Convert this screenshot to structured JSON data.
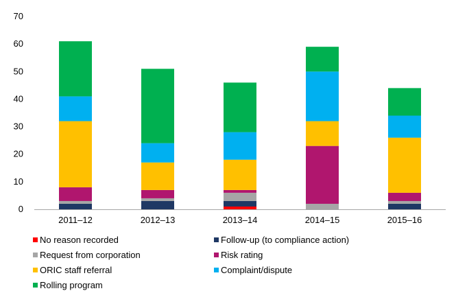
{
  "chart_data": {
    "type": "bar",
    "stacked": true,
    "categories": [
      "2011–12",
      "2012–13",
      "2013–14",
      "2014–15",
      "2015–16"
    ],
    "ylim": [
      0,
      70
    ],
    "yticks": [
      0,
      10,
      20,
      30,
      40,
      50,
      60,
      70
    ],
    "grid": false,
    "legend_position": "bottom",
    "series": [
      {
        "name": "No reason recorded",
        "color": "#ff0000",
        "values": [
          0,
          0,
          1,
          0,
          0
        ]
      },
      {
        "name": "Follow-up (to compliance action)",
        "color": "#1f3864",
        "values": [
          2,
          3,
          2,
          0,
          2
        ]
      },
      {
        "name": "Request from corporation",
        "color": "#a6a6a6",
        "values": [
          1,
          1,
          3,
          2,
          1
        ]
      },
      {
        "name": "Risk rating",
        "color": "#b0166e",
        "values": [
          5,
          3,
          1,
          21,
          3
        ]
      },
      {
        "name": "ORIC staff referral",
        "color": "#ffc000",
        "values": [
          24,
          10,
          11,
          9,
          20
        ]
      },
      {
        "name": "Complaint/dispute",
        "color": "#00b0f0",
        "values": [
          9,
          7,
          10,
          18,
          8
        ]
      },
      {
        "name": "Rolling program",
        "color": "#00b050",
        "values": [
          20,
          27,
          18,
          9,
          10
        ]
      }
    ]
  }
}
